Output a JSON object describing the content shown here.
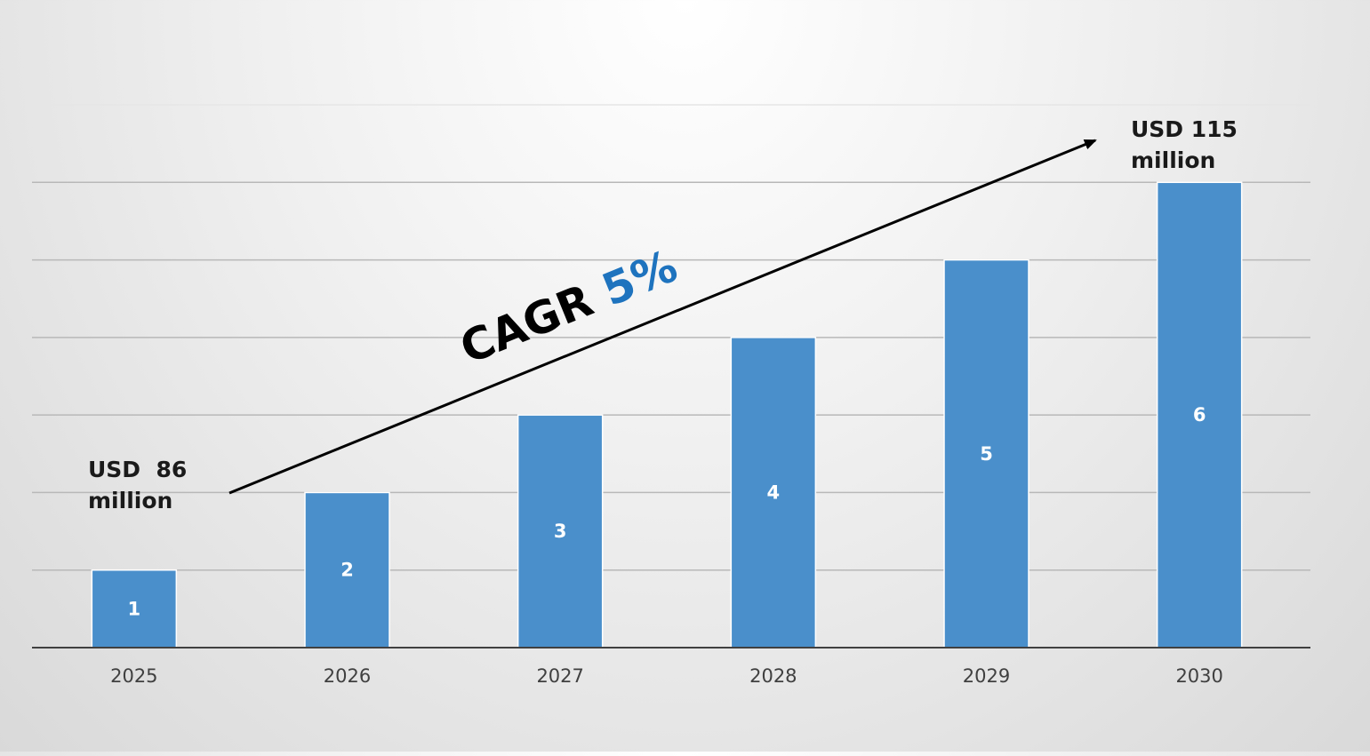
{
  "chart_data": {
    "type": "bar",
    "categories": [
      "2025",
      "2026",
      "2027",
      "2028",
      "2029",
      "2030"
    ],
    "values": [
      1,
      2,
      3,
      4,
      5,
      6
    ],
    "data_labels": [
      "1",
      "2",
      "3",
      "4",
      "5",
      "6"
    ],
    "ylim": [
      0,
      7
    ],
    "grid": true,
    "legend": "none",
    "bar_color": "#4a8fcb",
    "annotations": {
      "start_value_line1": "USD  86",
      "start_value_line2": "million",
      "end_value_line1": "USD 115",
      "end_value_line2": "million",
      "cagr_prefix": "CAGR ",
      "cagr_value": "5%",
      "cagr_value_color": "#1e73be"
    }
  }
}
